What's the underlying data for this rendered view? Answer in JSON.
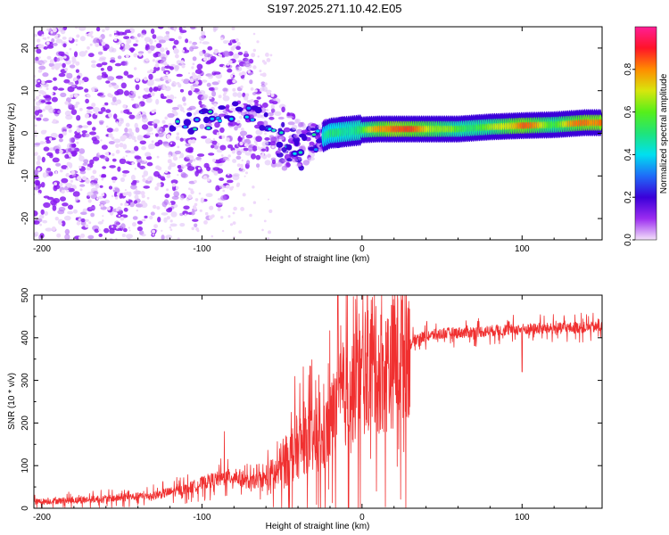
{
  "title": "S197.2025.271.10.42.E05",
  "chart_data": [
    {
      "type": "heatmap",
      "name": "spectrogram",
      "xlabel": "Height of straight line (km)",
      "ylabel": "Frequency (Hz)",
      "xlim": [
        -205,
        150
      ],
      "ylim": [
        -25,
        25
      ],
      "xticks": [
        -200,
        -100,
        0,
        100
      ],
      "yticks": [
        -20,
        -10,
        0,
        10,
        20
      ],
      "colorbar": {
        "label": "Normalized spectral amplitude",
        "range": [
          0.0,
          1.0
        ],
        "ticks": [
          "0.0",
          "0.2",
          "0.4",
          "0.6",
          "0.8"
        ],
        "colors": [
          "#f4e2fa",
          "#9b2cf0",
          "#3a00d9",
          "#1f6cf8",
          "#00e0f0",
          "#1fe47a",
          "#56ef1a",
          "#d8e60d",
          "#ff8c00",
          "#ff1428",
          "#ff1e96"
        ]
      },
      "ridge": [
        {
          "x": -120,
          "f": 2.5,
          "amp": 0.25
        },
        {
          "x": -100,
          "f": 3.0,
          "amp": 0.25
        },
        {
          "x": -85,
          "f": 4.0,
          "amp": 0.2
        },
        {
          "x": -75,
          "f": 6.0,
          "amp": 0.15
        },
        {
          "x": -60,
          "f": 2.0,
          "amp": 0.3
        },
        {
          "x": -45,
          "f": -2.0,
          "amp": 0.3
        },
        {
          "x": -35,
          "f": -3.0,
          "amp": 0.35
        },
        {
          "x": -20,
          "f": 0.0,
          "amp": 0.45
        },
        {
          "x": 0,
          "f": 0.8,
          "amp": 0.55
        },
        {
          "x": 10,
          "f": 1.0,
          "amp": 0.75
        },
        {
          "x": 20,
          "f": 1.0,
          "amp": 0.9
        },
        {
          "x": 40,
          "f": 1.0,
          "amp": 0.75
        },
        {
          "x": 60,
          "f": 1.0,
          "amp": 0.55
        },
        {
          "x": 80,
          "f": 1.5,
          "amp": 0.6
        },
        {
          "x": 100,
          "f": 1.8,
          "amp": 0.85
        },
        {
          "x": 120,
          "f": 2.0,
          "amp": 0.6
        },
        {
          "x": 140,
          "f": 2.5,
          "amp": 0.85
        }
      ]
    },
    {
      "type": "line",
      "name": "snr",
      "xlabel": "Height of straight line (km)",
      "ylabel": "SNR (10 * v/v)",
      "xlim": [
        -205,
        150
      ],
      "ylim": [
        0,
        500
      ],
      "xticks": [
        -200,
        -100,
        0,
        100
      ],
      "yticks": [
        0,
        100,
        200,
        300,
        400,
        500
      ],
      "color": "#f03030",
      "trend": [
        {
          "x": -205,
          "y": 15
        },
        {
          "x": -160,
          "y": 22
        },
        {
          "x": -130,
          "y": 30
        },
        {
          "x": -110,
          "y": 45
        },
        {
          "x": -95,
          "y": 65
        },
        {
          "x": -80,
          "y": 75
        },
        {
          "x": -70,
          "y": 60
        },
        {
          "x": -55,
          "y": 75
        },
        {
          "x": -45,
          "y": 120
        },
        {
          "x": -35,
          "y": 160
        },
        {
          "x": -25,
          "y": 150
        },
        {
          "x": -15,
          "y": 250
        },
        {
          "x": -5,
          "y": 280
        },
        {
          "x": 5,
          "y": 330
        },
        {
          "x": 15,
          "y": 320
        },
        {
          "x": 25,
          "y": 370
        },
        {
          "x": 35,
          "y": 400
        },
        {
          "x": 50,
          "y": 410
        },
        {
          "x": 100,
          "y": 420
        },
        {
          "x": 150,
          "y": 425
        }
      ],
      "spikes": [
        {
          "x": -86,
          "y": 180
        },
        {
          "x": -29,
          "y": 300
        },
        {
          "x": -15,
          "y": 500
        },
        {
          "x": -4,
          "y": 490
        },
        {
          "x": 9,
          "y": 40
        },
        {
          "x": 100,
          "y": 320
        }
      ]
    }
  ]
}
